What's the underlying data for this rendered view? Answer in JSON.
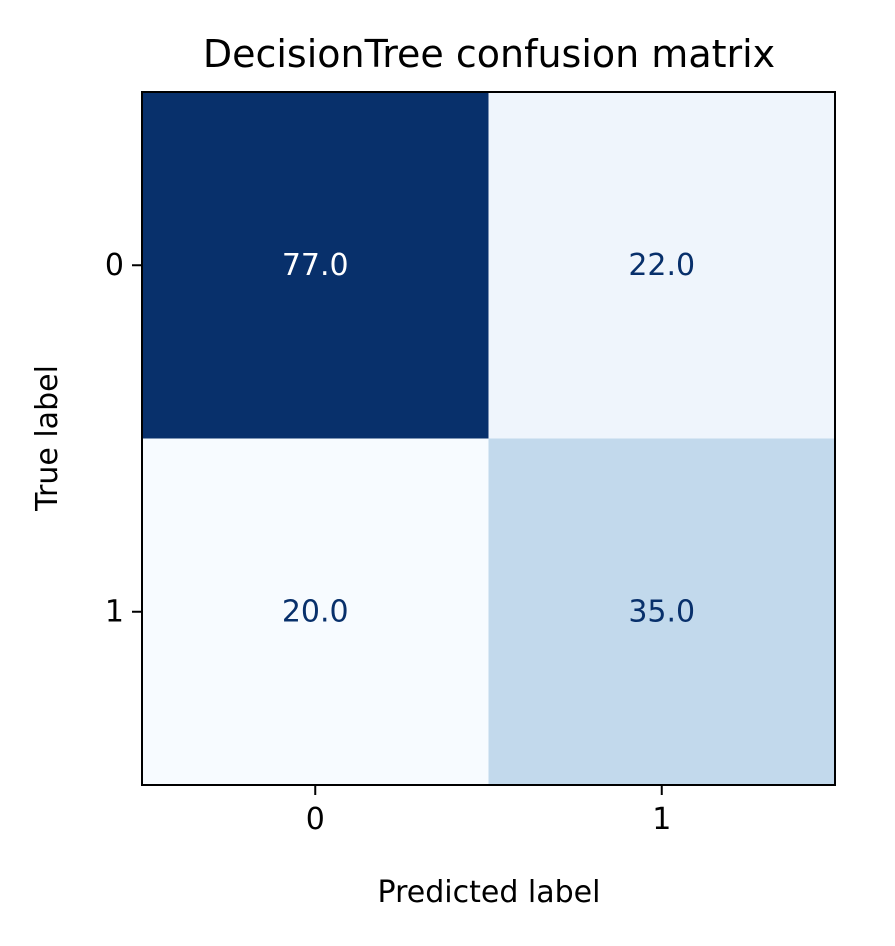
{
  "chart_data": {
    "type": "heatmap",
    "title": "DecisionTree confusion matrix",
    "xlabel": "Predicted label",
    "ylabel": "True label",
    "x_categories": [
      "0",
      "1"
    ],
    "y_categories": [
      "0",
      "1"
    ],
    "values": [
      [
        77.0,
        22.0
      ],
      [
        20.0,
        35.0
      ]
    ],
    "cell_labels": [
      [
        "77.0",
        "22.0"
      ],
      [
        "20.0",
        "35.0"
      ]
    ],
    "colormap": "Blues",
    "colors": {
      "cells": [
        [
          "#08306b",
          "#eff5fc"
        ],
        [
          "#f7fbff",
          "#c2d9ec"
        ]
      ],
      "text_dark": "#08306b",
      "text_light": "#ffffff"
    },
    "grid": false,
    "colorbar": false
  }
}
